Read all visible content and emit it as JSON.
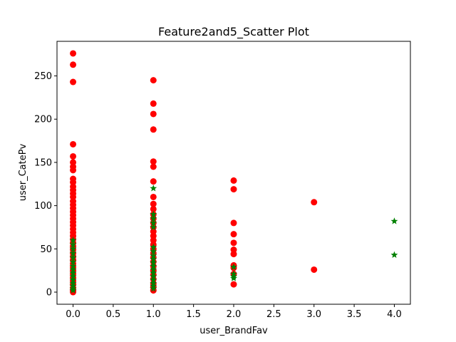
{
  "chart_data": {
    "type": "scatter",
    "title": "Feature2and5_Scatter Plot",
    "xlabel": "user_BrandFav",
    "ylabel": "user_CatePv",
    "xlim": [
      -0.2,
      4.2
    ],
    "ylim": [
      -14,
      290
    ],
    "xticks": [
      0.0,
      0.5,
      1.0,
      1.5,
      2.0,
      2.5,
      3.0,
      3.5,
      4.0
    ],
    "xtick_labels": [
      "0.0",
      "0.5",
      "1.0",
      "1.5",
      "2.0",
      "2.5",
      "3.0",
      "3.5",
      "4.0"
    ],
    "yticks": [
      0,
      50,
      100,
      150,
      200,
      250
    ],
    "ytick_labels": [
      "0",
      "50",
      "100",
      "150",
      "200",
      "250"
    ],
    "grid": false,
    "legend": "none",
    "series": [
      {
        "color": "#ff0000",
        "marker": "circle",
        "points": [
          [
            0,
            276
          ],
          [
            0,
            263
          ],
          [
            0,
            243
          ],
          [
            0,
            171
          ],
          [
            0,
            157
          ],
          [
            0,
            150
          ],
          [
            0,
            145
          ],
          [
            0,
            141
          ],
          [
            0,
            131
          ],
          [
            0,
            127
          ],
          [
            0,
            122
          ],
          [
            0,
            118
          ],
          [
            0,
            114
          ],
          [
            0,
            110
          ],
          [
            0,
            105
          ],
          [
            0,
            101
          ],
          [
            0,
            97
          ],
          [
            0,
            93
          ],
          [
            0,
            89
          ],
          [
            0,
            85
          ],
          [
            0,
            81
          ],
          [
            0,
            77
          ],
          [
            0,
            73
          ],
          [
            0,
            69
          ],
          [
            0,
            65
          ],
          [
            0,
            61
          ],
          [
            0,
            57
          ],
          [
            0,
            53
          ],
          [
            0,
            49
          ],
          [
            0,
            45
          ],
          [
            0,
            41
          ],
          [
            0,
            37
          ],
          [
            0,
            33
          ],
          [
            0,
            29
          ],
          [
            0,
            25
          ],
          [
            0,
            21
          ],
          [
            0,
            17
          ],
          [
            0,
            13
          ],
          [
            0,
            9
          ],
          [
            0,
            5
          ],
          [
            0,
            2
          ],
          [
            0,
            0
          ],
          [
            1,
            245
          ],
          [
            1,
            218
          ],
          [
            1,
            206
          ],
          [
            1,
            188
          ],
          [
            1,
            151
          ],
          [
            1,
            145
          ],
          [
            1,
            128
          ],
          [
            1,
            110
          ],
          [
            1,
            102
          ],
          [
            1,
            96
          ],
          [
            1,
            90
          ],
          [
            1,
            85
          ],
          [
            1,
            80
          ],
          [
            1,
            75
          ],
          [
            1,
            70
          ],
          [
            1,
            65
          ],
          [
            1,
            60
          ],
          [
            1,
            55
          ],
          [
            1,
            50
          ],
          [
            1,
            45
          ],
          [
            1,
            40
          ],
          [
            1,
            35
          ],
          [
            1,
            30
          ],
          [
            1,
            25
          ],
          [
            1,
            20
          ],
          [
            1,
            15
          ],
          [
            1,
            10
          ],
          [
            1,
            6
          ],
          [
            1,
            2
          ],
          [
            2,
            129
          ],
          [
            2,
            119
          ],
          [
            2,
            80
          ],
          [
            2,
            67
          ],
          [
            2,
            57
          ],
          [
            2,
            49
          ],
          [
            2,
            44
          ],
          [
            2,
            31
          ],
          [
            2,
            28
          ],
          [
            2,
            21
          ],
          [
            2,
            9
          ],
          [
            3,
            104
          ],
          [
            3,
            26
          ]
        ]
      },
      {
        "color": "#008000",
        "marker": "star",
        "points": [
          [
            0,
            60
          ],
          [
            0,
            55
          ],
          [
            0,
            50
          ],
          [
            0,
            45
          ],
          [
            0,
            40
          ],
          [
            0,
            35
          ],
          [
            0,
            30
          ],
          [
            0,
            26
          ],
          [
            0,
            22
          ],
          [
            0,
            18
          ],
          [
            0,
            14
          ],
          [
            0,
            10
          ],
          [
            0,
            7
          ],
          [
            0,
            4
          ],
          [
            0,
            2
          ],
          [
            1,
            120
          ],
          [
            1,
            90
          ],
          [
            1,
            85
          ],
          [
            1,
            80
          ],
          [
            1,
            75
          ],
          [
            1,
            52
          ],
          [
            1,
            47
          ],
          [
            1,
            42
          ],
          [
            1,
            38
          ],
          [
            1,
            34
          ],
          [
            1,
            30
          ],
          [
            1,
            26
          ],
          [
            1,
            22
          ],
          [
            1,
            18
          ],
          [
            1,
            14
          ],
          [
            1,
            10
          ],
          [
            1,
            7
          ],
          [
            1,
            4
          ],
          [
            2,
            29
          ],
          [
            2,
            21
          ],
          [
            2,
            18
          ],
          [
            2,
            16
          ],
          [
            4,
            82
          ],
          [
            4,
            43
          ]
        ]
      }
    ]
  }
}
